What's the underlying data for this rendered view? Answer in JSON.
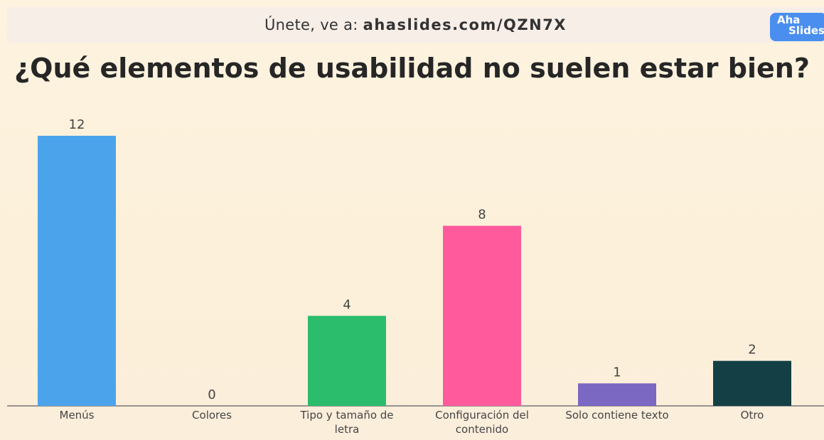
{
  "header": {
    "prefix": "Únete, ve a:",
    "link": "ahaslides.com/QZN7X"
  },
  "logo": {
    "top": "Aha",
    "bottom": "Slides"
  },
  "chart_data": {
    "type": "bar",
    "title": "¿Qué elementos de usabilidad no suelen estar bien?",
    "categories": [
      "Menús",
      "Colores",
      "Tipo y tamaño de letra",
      "Configuración del contenido",
      "Solo contiene texto",
      "Otro"
    ],
    "values": [
      12,
      0,
      4,
      8,
      1,
      2
    ],
    "colors": [
      "#4ba4eb",
      null,
      "#2bbd6c",
      "#ff5b9c",
      "#7a68c2",
      "#133f45"
    ]
  }
}
